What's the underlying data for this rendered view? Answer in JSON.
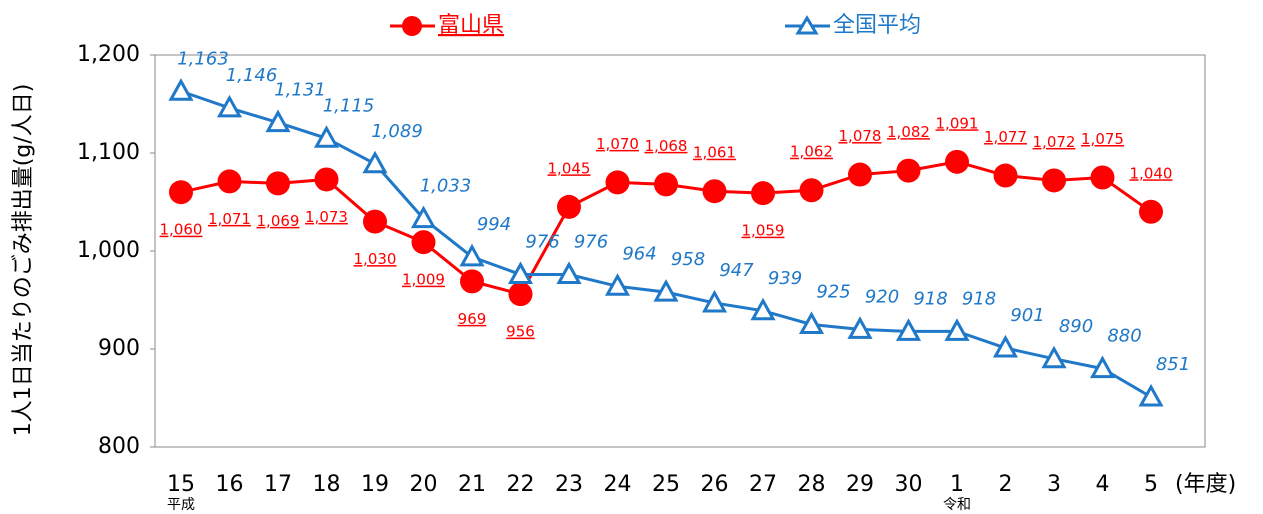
{
  "chart_data": {
    "type": "line",
    "y_label": "1人1日当たりのごみ排出量(g/人日)",
    "x_unit": "(年度)",
    "categories": [
      "15",
      "16",
      "17",
      "18",
      "19",
      "20",
      "21",
      "22",
      "23",
      "24",
      "25",
      "26",
      "27",
      "28",
      "29",
      "30",
      "1",
      "2",
      "3",
      "4",
      "5"
    ],
    "x_sublabels": [
      "平成",
      null,
      null,
      null,
      null,
      null,
      null,
      null,
      null,
      null,
      null,
      null,
      null,
      null,
      null,
      null,
      "令和",
      null,
      null,
      null,
      null
    ],
    "series": [
      {
        "name": "富山県",
        "color": "#ff0000",
        "marker": "circle",
        "values": [
          1060,
          1071,
          1069,
          1073,
          1030,
          1009,
          969,
          956,
          1045,
          1070,
          1068,
          1061,
          1059,
          1062,
          1078,
          1082,
          1091,
          1077,
          1072,
          1075,
          1040
        ],
        "value_labels": [
          "1,060",
          "1,071",
          "1,069",
          "1,073",
          "1,030",
          "1,009",
          "969",
          "956",
          "1,045",
          "1,070",
          "1,068",
          "1,061",
          "1,059",
          "1,062",
          "1,078",
          "1,082",
          "1,091",
          "1,077",
          "1,072",
          "1,075",
          "1,040"
        ]
      },
      {
        "name": "全国平均",
        "color": "#1f78c8",
        "marker": "triangle",
        "values": [
          1163,
          1146,
          1131,
          1115,
          1089,
          1033,
          994,
          976,
          976,
          964,
          958,
          947,
          939,
          925,
          920,
          918,
          918,
          901,
          890,
          880,
          851
        ],
        "value_labels": [
          "1,163",
          "1,146",
          "1,131",
          "1,115",
          "1,089",
          "1,033",
          "994",
          "976",
          "976",
          "964",
          "958",
          "947",
          "939",
          "925",
          "920",
          "918",
          "918",
          "901",
          "890",
          "880",
          "851"
        ]
      }
    ],
    "ylim": [
      800,
      1200
    ],
    "yticks": [
      800,
      900,
      {
        "value": 1000,
        "label": "1,000"
      },
      {
        "value": 1100,
        "label": "1,100"
      },
      {
        "value": 1200,
        "label": "1,200"
      }
    ],
    "grid": false
  }
}
